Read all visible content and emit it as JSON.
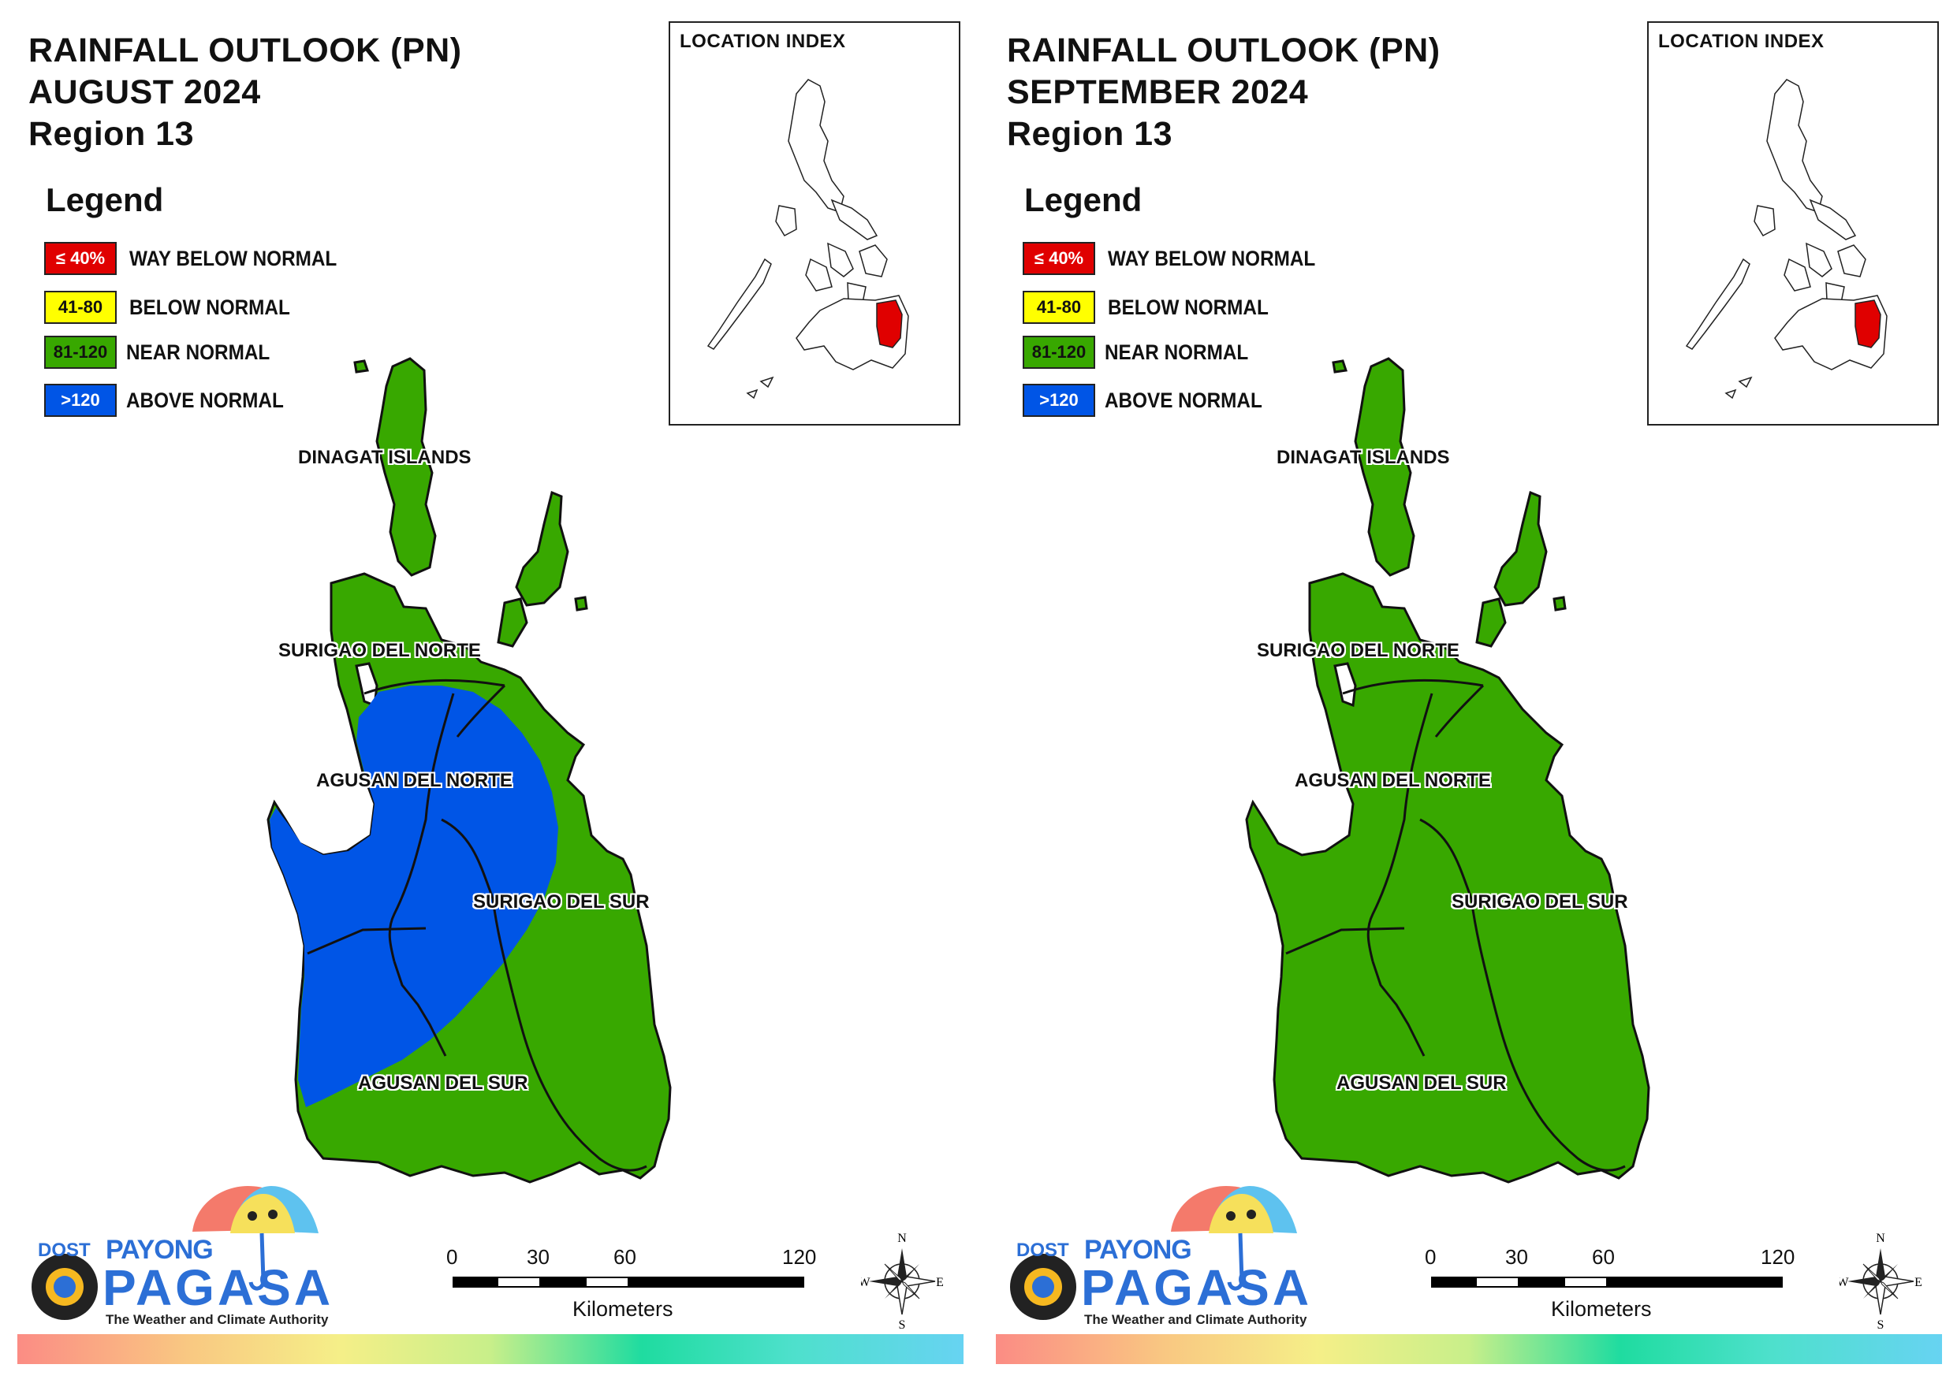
{
  "panels": [
    {
      "title": {
        "line1": "RAINFALL OUTLOOK (PN)",
        "line2": "AUGUST 2024",
        "line3": "Region 13"
      },
      "legend": {
        "title": "Legend",
        "items": [
          {
            "range": "≤ 40%",
            "label": "WAY BELOW NORMAL",
            "color": "#e00000",
            "text_color": "#ffffff"
          },
          {
            "range": "41-80",
            "label": "BELOW NORMAL",
            "color": "#ffff00",
            "text_color": "#111111"
          },
          {
            "range": "81-120",
            "label": "NEAR NORMAL",
            "color": "#38a800",
            "text_color": "#111111"
          },
          {
            "range": ">120",
            "label": "ABOVE NORMAL",
            "color": "#0055e6",
            "text_color": "#ffffff"
          }
        ]
      },
      "inset_title": "LOCATION INDEX",
      "provinces": [
        {
          "name": "DINAGAT ISLANDS",
          "category": "NEAR NORMAL"
        },
        {
          "name": "SURIGAO DEL NORTE",
          "category": "NEAR NORMAL"
        },
        {
          "name": "AGUSAN DEL NORTE",
          "category": "ABOVE NORMAL"
        },
        {
          "name": "SURIGAO DEL SUR",
          "category": "NEAR NORMAL / ABOVE NORMAL"
        },
        {
          "name": "AGUSAN DEL SUR",
          "category": "ABOVE NORMAL / NEAR NORMAL"
        }
      ],
      "above_normal_zone": true,
      "scale": {
        "ticks": [
          "0",
          "30",
          "60",
          "120"
        ],
        "units": "Kilometers"
      },
      "compass": {
        "n": "N",
        "s": "S",
        "e": "E",
        "w": "W"
      },
      "logo": {
        "dost": "DOST",
        "payong": "PAYONG",
        "pagasa": "PAGASA",
        "tagline": "The Weather and Climate Authority"
      }
    },
    {
      "title": {
        "line1": "RAINFALL OUTLOOK (PN)",
        "line2": "SEPTEMBER 2024",
        "line3": "Region 13"
      },
      "legend": {
        "title": "Legend",
        "items": [
          {
            "range": "≤ 40%",
            "label": "WAY BELOW NORMAL",
            "color": "#e00000",
            "text_color": "#ffffff"
          },
          {
            "range": "41-80",
            "label": "BELOW NORMAL",
            "color": "#ffff00",
            "text_color": "#111111"
          },
          {
            "range": "81-120",
            "label": "NEAR NORMAL",
            "color": "#38a800",
            "text_color": "#111111"
          },
          {
            "range": ">120",
            "label": "ABOVE NORMAL",
            "color": "#0055e6",
            "text_color": "#ffffff"
          }
        ]
      },
      "inset_title": "LOCATION INDEX",
      "provinces": [
        {
          "name": "DINAGAT ISLANDS",
          "category": "NEAR NORMAL"
        },
        {
          "name": "SURIGAO DEL NORTE",
          "category": "NEAR NORMAL"
        },
        {
          "name": "AGUSAN DEL NORTE",
          "category": "NEAR NORMAL"
        },
        {
          "name": "SURIGAO DEL SUR",
          "category": "NEAR NORMAL"
        },
        {
          "name": "AGUSAN DEL SUR",
          "category": "NEAR NORMAL"
        }
      ],
      "above_normal_zone": false,
      "scale": {
        "ticks": [
          "0",
          "30",
          "60",
          "120"
        ],
        "units": "Kilometers"
      },
      "compass": {
        "n": "N",
        "s": "S",
        "e": "E",
        "w": "W"
      },
      "logo": {
        "dost": "DOST",
        "payong": "PAYONG",
        "pagasa": "PAGASA",
        "tagline": "The Weather and Climate Authority"
      }
    }
  ],
  "colors": {
    "land_near_normal": "#38a800",
    "above_normal": "#0055e6",
    "highlight_region": "#e00000"
  }
}
